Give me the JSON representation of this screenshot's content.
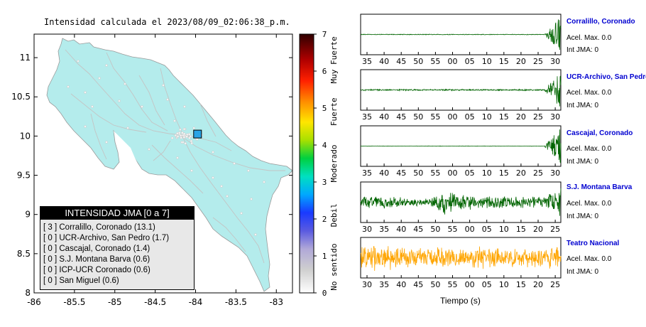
{
  "map": {
    "title": "Intensidad calculada el 2023/08/09_02:06:38_p.m.",
    "x_ticks": [
      "-86",
      "-85.5",
      "-85",
      "-84.5",
      "-84",
      "-83.5",
      "-83"
    ],
    "y_ticks": [
      "11",
      "10.5",
      "10",
      "9.5",
      "9",
      "8.5",
      "8"
    ],
    "xlim": [
      -86,
      -82.8
    ],
    "ylim": [
      8,
      11.3
    ],
    "land_color": "#b4ecec",
    "marker": {
      "lon": -83.98,
      "lat": 10.03,
      "color": "#29a3e6"
    }
  },
  "legend": {
    "title": "INTENSIDAD JMA [0 a 7]",
    "rows": [
      {
        "label": "[ 3 ]  Corralillo, Coronado (13.1)"
      },
      {
        "label": "[ 0 ]  UCR-Archivo, San Pedro (1.7)"
      },
      {
        "label": "[ 0 ]  Cascajal, Coronado (1.4)"
      },
      {
        "label": "[ 0 ]  S.J. Montana Barva (0.6)"
      },
      {
        "label": "[ 0 ]  ICP-UCR Coronado (0.6)"
      },
      {
        "label": "[ 0 ]  San Miguel (0.6)"
      }
    ]
  },
  "colorbar": {
    "ticks": [
      "0",
      "1",
      "2",
      "3",
      "4",
      "5",
      "6",
      "7"
    ],
    "categories": [
      "No sentido",
      "Debil",
      "Moderado",
      "Fuerte",
      "Muy Fuerte"
    ]
  },
  "chart_data": [
    {
      "type": "line",
      "title": "Corralillo, Coronado",
      "x_tick_labels": [
        "35",
        "40",
        "45",
        "50",
        "55",
        "00",
        "05",
        "10",
        "15",
        "20",
        "25",
        "30"
      ],
      "trace_color": "#006400",
      "acel_label": "Acel. Max. 0.0",
      "int_label": "Int JMA: 0",
      "amplitude_profile": [
        0.02,
        0.02,
        0.02,
        0.02,
        0.02,
        0.02,
        0.02,
        0.02,
        0.02,
        0.02,
        0.02,
        0.02,
        0.9
      ]
    },
    {
      "type": "line",
      "title": "UCR-Archivo, San Pedro",
      "x_tick_labels": [
        "35",
        "40",
        "45",
        "50",
        "55",
        "00",
        "05",
        "10",
        "15",
        "20",
        "25",
        "30"
      ],
      "trace_color": "#006400",
      "acel_label": "Acel. Max. 0.0",
      "int_label": "Int JMA: 0",
      "amplitude_profile": [
        0.04,
        0.04,
        0.04,
        0.04,
        0.04,
        0.04,
        0.04,
        0.04,
        0.04,
        0.04,
        0.04,
        0.04,
        0.9
      ]
    },
    {
      "type": "line",
      "title": "Cascajal, Coronado",
      "x_tick_labels": [
        "35",
        "40",
        "45",
        "50",
        "55",
        "00",
        "05",
        "10",
        "15",
        "20",
        "25",
        "30"
      ],
      "trace_color": "#006400",
      "acel_label": "Acel. Max. 0.0",
      "int_label": "Int JMA: 0",
      "amplitude_profile": [
        0.01,
        0.01,
        0.01,
        0.01,
        0.01,
        0.01,
        0.01,
        0.01,
        0.01,
        0.01,
        0.01,
        0.01,
        0.9
      ]
    },
    {
      "type": "line",
      "title": "S.J. Montana Barva",
      "x_tick_labels": [
        "30",
        "35",
        "40",
        "45",
        "50",
        "55",
        "00",
        "05",
        "10",
        "15",
        "20",
        "25"
      ],
      "trace_color": "#006400",
      "acel_label": "Acel. Max. 0.0",
      "int_label": "Int JMA: 0",
      "amplitude_profile": [
        0.3,
        0.35,
        0.3,
        0.2,
        0.2,
        0.65,
        0.5,
        0.3,
        0.35,
        0.3,
        0.3,
        0.35,
        0.8
      ]
    },
    {
      "type": "line",
      "title": "Teatro Nacional",
      "xlabel": "Tiempo (s)",
      "x_tick_labels": [
        "30",
        "35",
        "40",
        "45",
        "50",
        "55",
        "00",
        "05",
        "10",
        "15",
        "20",
        "25"
      ],
      "trace_color": "#ffa500",
      "acel_label": "Acel. Max. 0.0",
      "int_label": "Int JMA: 0",
      "amplitude_profile": [
        0.6,
        0.7,
        0.6,
        0.55,
        0.5,
        0.55,
        0.5,
        0.6,
        0.55,
        0.5,
        0.5,
        0.55,
        0.6
      ]
    }
  ]
}
